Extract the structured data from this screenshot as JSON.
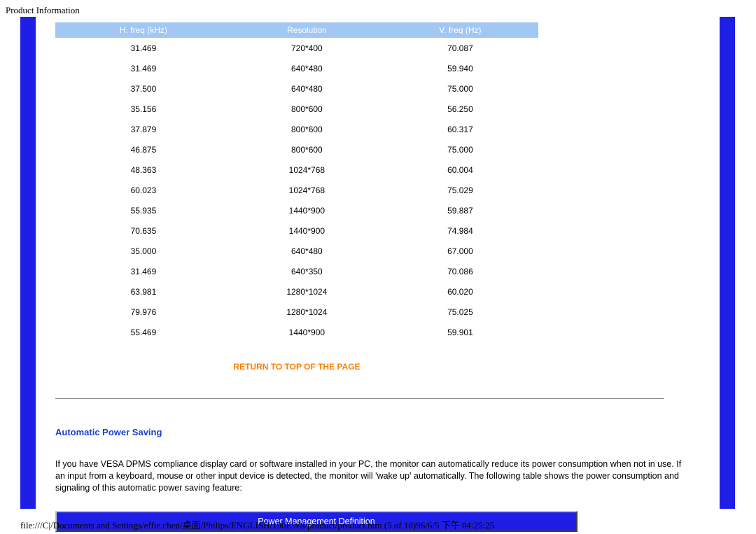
{
  "header_label": "Product Information",
  "table": {
    "columns": [
      "H. freq (kHz)",
      "Resolution",
      "V. freq (Hz)"
    ],
    "header_bg": "#a1c7f2",
    "header_text_color": "#ffffff",
    "cell_fontsize": 12,
    "rows": [
      [
        "31.469",
        "720*400",
        "70.087"
      ],
      [
        "31.469",
        "640*480",
        "59.940"
      ],
      [
        "37.500",
        "640*480",
        "75.000"
      ],
      [
        "35.156",
        "800*600",
        "56.250"
      ],
      [
        "37.879",
        "800*600",
        "60.317"
      ],
      [
        "46.875",
        "800*600",
        "75.000"
      ],
      [
        "48.363",
        "1024*768",
        "60.004"
      ],
      [
        "60.023",
        "1024*768",
        "75.029"
      ],
      [
        "55.935",
        "1440*900",
        "59.887"
      ],
      [
        "70.635",
        "1440*900",
        "74.984"
      ],
      [
        "35.000",
        "640*480",
        "67.000"
      ],
      [
        "31.469",
        "640*350",
        "70.086"
      ],
      [
        "63.981",
        "1280*1024",
        "60.020"
      ],
      [
        "79.976",
        "1280*1024",
        "75.025"
      ],
      [
        "55.469",
        "1440*900",
        "59.901"
      ]
    ]
  },
  "return_link": "RETURN TO TOP OF THE PAGE",
  "return_link_color": "#ff7f00",
  "section_title": "Automatic Power Saving",
  "section_title_color": "#1a3fd6",
  "body_text": "If you have VESA DPMS compliance display card or software installed in your PC, the monitor can automatically reduce its power consumption when not in use. If an input from a keyboard, mouse or other input device is detected, the monitor will 'wake up' automatically. The following table shows the power consumption and signaling of this automatic power saving feature:",
  "pm_header": "Power Management Definition",
  "pm_header_bg": "#1e1ee6",
  "pm_header_text_color": "#ffffff",
  "frame_bar_color": "#1e1ee6",
  "footer_path": "file:///C|/Documents and Settings/effie.chen/桌面/Philips/ENGLISH/190EW8/product/product.htm (5 of 10)96/6/5 下午 04:25:25"
}
